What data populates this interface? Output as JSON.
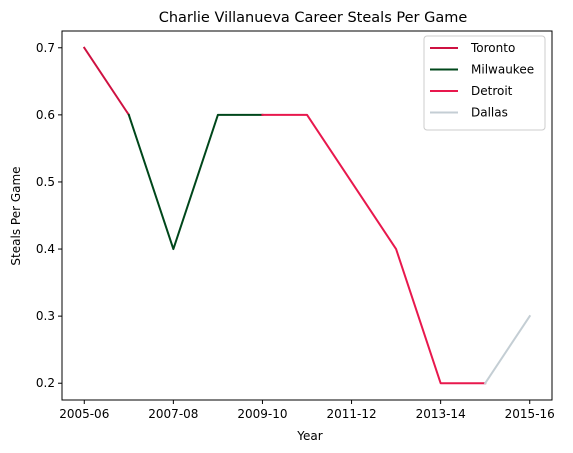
{
  "chart_data": {
    "type": "line",
    "title": "Charlie Villanueva Career Steals Per Game",
    "xlabel": "Year",
    "ylabel": "Steals Per Game",
    "x": [
      "2005-06",
      "2006-07",
      "2007-08",
      "2008-09",
      "2009-10",
      "2010-11",
      "2011-12",
      "2012-13",
      "2013-14",
      "2014-15",
      "2015-16"
    ],
    "x_ticks": [
      "2005-06",
      "2007-08",
      "2009-10",
      "2011-12",
      "2013-14",
      "2015-16"
    ],
    "y_ticks": [
      "0.2",
      "0.3",
      "0.4",
      "0.5",
      "0.6",
      "0.7"
    ],
    "ylim": [
      0.175,
      0.725
    ],
    "grid": false,
    "legend_position": "top-right",
    "series": [
      {
        "name": "Toronto",
        "color": "#ce1141",
        "x": [
          "2005-06",
          "2006-07"
        ],
        "values": [
          0.7,
          0.6
        ]
      },
      {
        "name": "Milwaukee",
        "color": "#00471b",
        "x": [
          "2006-07",
          "2007-08",
          "2008-09",
          "2009-10"
        ],
        "values": [
          0.6,
          0.4,
          0.6,
          0.6
        ]
      },
      {
        "name": "Detroit",
        "color": "#e8184d",
        "x": [
          "2009-10",
          "2010-11",
          "2011-12",
          "2012-13",
          "2013-14",
          "2014-15"
        ],
        "values": [
          0.6,
          0.6,
          0.5,
          0.4,
          0.2,
          0.2
        ]
      },
      {
        "name": "Dallas",
        "color": "#c4ced4",
        "x": [
          "2014-15",
          "2015-16"
        ],
        "values": [
          0.2,
          0.3
        ]
      }
    ]
  }
}
